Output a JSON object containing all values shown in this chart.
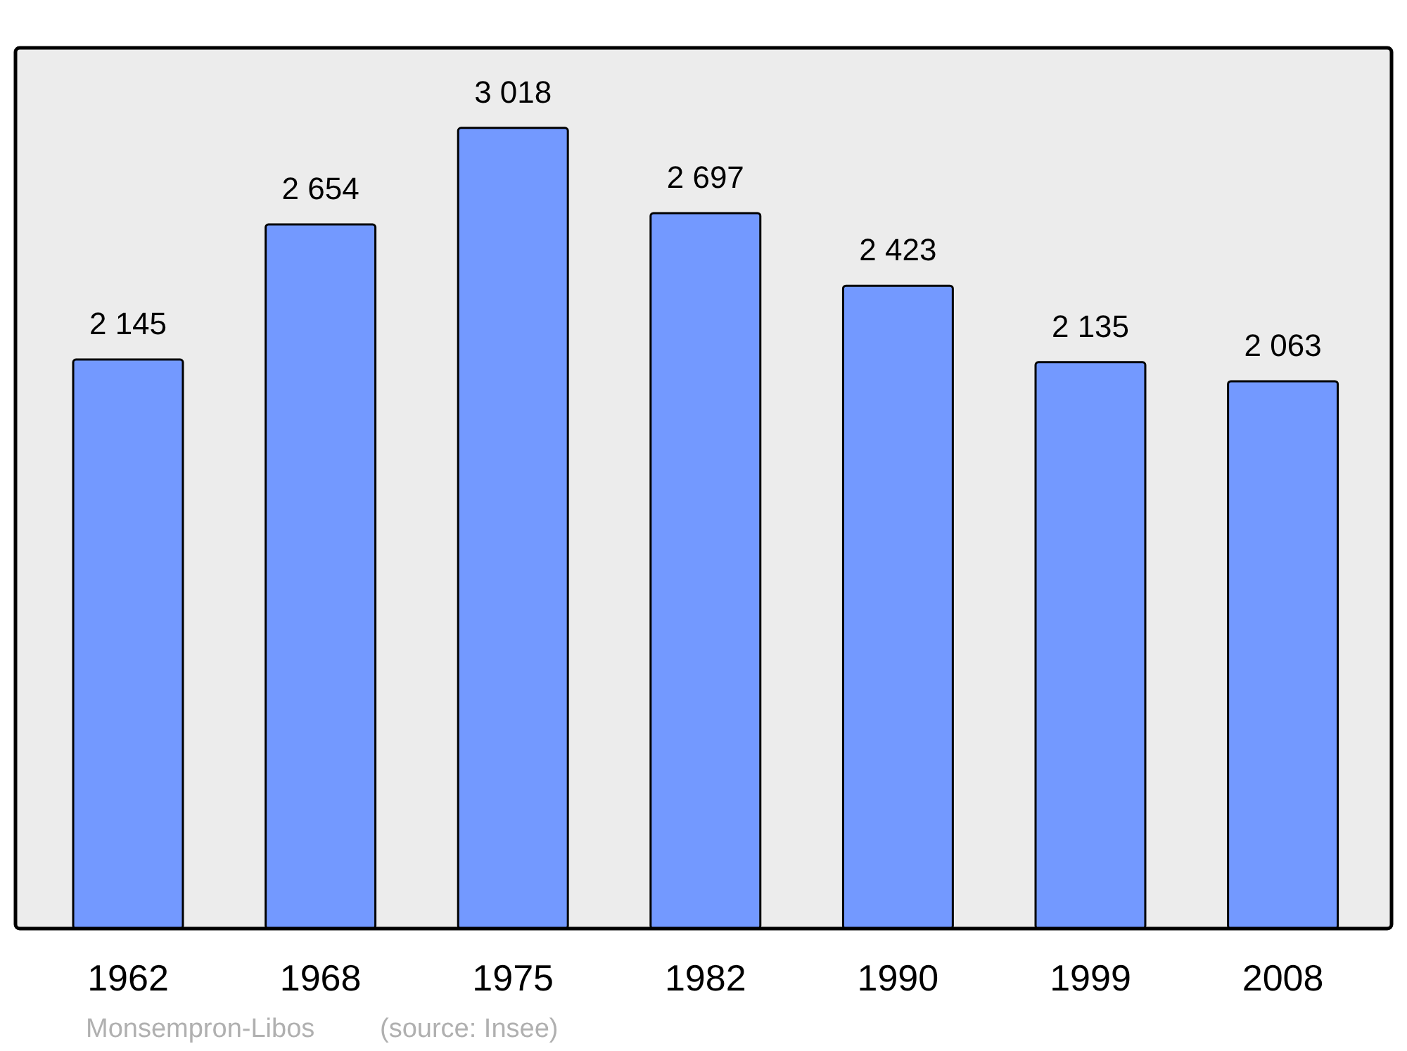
{
  "chart_data": {
    "type": "bar",
    "categories": [
      "1962",
      "1968",
      "1975",
      "1982",
      "1990",
      "1999",
      "2008"
    ],
    "values": [
      2145,
      2654,
      3018,
      2697,
      2423,
      2135,
      2063
    ],
    "value_labels": [
      "2 145",
      "2 654",
      "3 018",
      "2 697",
      "2 423",
      "2 135",
      "2 063"
    ],
    "color": "#7399ff",
    "annotations": [
      "Monsempron-Libos",
      "(source: Insee)"
    ],
    "grid": false
  }
}
